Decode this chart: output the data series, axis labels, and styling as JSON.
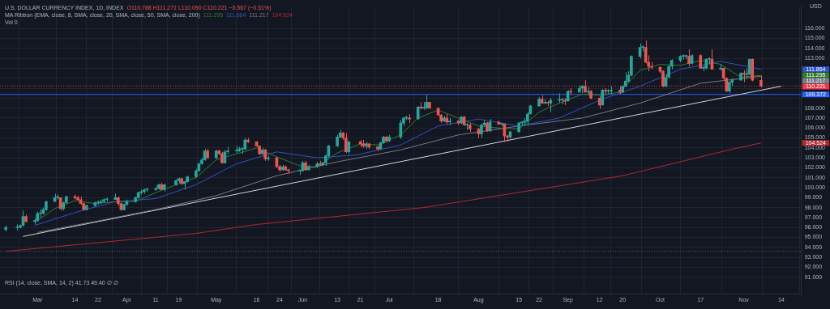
{
  "chart_data": {
    "type": "candlestick",
    "title": "U.S. DOLLAR CURRENCY INDEX, 1D, INDEX",
    "ylabel": "USD",
    "annotations": [
      "O110.788 H111.271 L110.090 C110.221 −0.567 (−0.51%)",
      "MA Ribbon (EMA, close, 8, SMA, close, 20, SMA, close, 50, SMA, close, 200)",
      "Vol 0",
      "RSI (14, close, SMA, 14, 2) 41.73 49.40 ∅ ∅",
      "111.295",
      "111.864",
      "111.217",
      "104.524"
    ],
    "x": [
      "--02-18",
      "--02-22",
      "--02-23",
      "--02-24",
      "--02-25",
      "--02-28",
      "--03-01",
      "--03-02",
      "--03-03",
      "--03-04",
      "--03-07",
      "--03-08",
      "--03-09",
      "--03-10",
      "--03-11",
      "--03-14",
      "--03-15",
      "--03-16",
      "--03-17",
      "--03-18",
      "--03-21",
      "--03-22",
      "--03-23",
      "--03-24",
      "--03-25",
      "--03-28",
      "--03-29",
      "--03-30",
      "--03-31",
      "--04-01",
      "--04-04",
      "--04-05",
      "--04-06",
      "--04-07",
      "--04-08",
      "--04-11",
      "--04-12",
      "--04-13",
      "--04-14",
      "--04-18",
      "--04-19",
      "--04-20",
      "--04-21",
      "--04-22",
      "--04-25",
      "--04-26",
      "--04-27",
      "--04-28",
      "--04-29",
      "--05-02",
      "--05-03",
      "--05-04",
      "--05-05",
      "--05-06",
      "--05-09",
      "--05-10",
      "--05-11",
      "--05-12",
      "--05-13",
      "--05-16",
      "--05-17",
      "--05-18",
      "--05-19",
      "--05-20",
      "--05-23",
      "--05-24",
      "--05-25",
      "--05-26",
      "--05-27",
      "--05-31",
      "--06-01",
      "--06-02",
      "--06-03",
      "--06-06",
      "--06-07",
      "--06-08",
      "--06-09",
      "--06-10",
      "--06-13",
      "--06-14",
      "--06-15",
      "--06-16",
      "--06-17",
      "--06-21",
      "--06-22",
      "--06-23",
      "--06-24",
      "--06-27",
      "--06-28",
      "--06-29",
      "--06-30",
      "--07-01",
      "--07-05",
      "--07-06",
      "--07-07",
      "--07-08",
      "--07-11",
      "--07-12",
      "--07-13",
      "--07-14",
      "--07-15",
      "--07-18",
      "--07-19",
      "--07-20",
      "--07-21",
      "--07-22",
      "--07-25",
      "--07-26",
      "--07-27",
      "--07-28",
      "--07-29",
      "--08-01",
      "--08-02",
      "--08-03",
      "--08-04",
      "--08-05",
      "--08-08",
      "--08-09",
      "--08-10",
      "--08-11",
      "--08-12",
      "--08-15",
      "--08-16",
      "--08-17",
      "--08-18",
      "--08-19",
      "--08-22",
      "--08-23",
      "--08-24",
      "--08-25",
      "--08-26",
      "--08-29",
      "--08-30",
      "--08-31",
      "--09-01",
      "--09-02",
      "--09-05",
      "--09-06",
      "--09-07",
      "--09-08",
      "--09-09",
      "--09-12",
      "--09-13",
      "--09-14",
      "--09-15",
      "--09-16",
      "--09-19",
      "--09-20",
      "--09-21",
      "--09-22",
      "--09-23",
      "--09-26",
      "--09-27",
      "--09-28",
      "--09-29",
      "--09-30",
      "--10-03",
      "--10-04",
      "--10-05",
      "--10-06",
      "--10-07",
      "--10-10",
      "--10-11",
      "--10-12",
      "--10-13",
      "--10-14",
      "--10-17",
      "--10-18",
      "--10-19",
      "--10-20",
      "--10-21",
      "--10-24",
      "--10-25",
      "--10-26",
      "--10-27",
      "--10-28",
      "--10-31",
      "--11-01",
      "--11-02",
      "--11-03",
      "--11-04",
      "--11-07"
    ],
    "ohlc": [
      [
        95.8,
        96.2,
        95.6,
        96.0
      ],
      [
        96.0,
        96.3,
        95.7,
        96.0
      ],
      [
        96.0,
        96.3,
        95.9,
        96.2
      ],
      [
        96.2,
        97.7,
        96.1,
        97.1
      ],
      [
        97.1,
        97.3,
        96.5,
        96.6
      ],
      [
        96.6,
        96.9,
        96.3,
        96.7
      ],
      [
        96.7,
        97.6,
        96.6,
        97.4
      ],
      [
        97.4,
        97.8,
        97.0,
        97.4
      ],
      [
        97.4,
        98.0,
        97.3,
        97.8
      ],
      [
        97.8,
        98.7,
        97.7,
        98.6
      ],
      [
        98.6,
        99.4,
        98.6,
        99.0
      ],
      [
        99.0,
        99.3,
        98.8,
        99.0
      ],
      [
        99.0,
        99.0,
        97.7,
        97.9
      ],
      [
        97.9,
        98.6,
        97.7,
        98.5
      ],
      [
        98.5,
        99.2,
        98.4,
        99.1
      ],
      [
        99.1,
        99.3,
        98.8,
        99.0
      ],
      [
        99.0,
        99.2,
        98.7,
        98.8
      ],
      [
        98.8,
        99.1,
        98.3,
        98.4
      ],
      [
        98.4,
        98.5,
        97.7,
        97.8
      ],
      [
        97.8,
        98.3,
        97.7,
        98.2
      ],
      [
        98.2,
        98.6,
        98.1,
        98.5
      ],
      [
        98.5,
        98.7,
        98.3,
        98.5
      ],
      [
        98.5,
        98.8,
        98.4,
        98.6
      ],
      [
        98.6,
        98.9,
        98.5,
        98.8
      ],
      [
        98.8,
        99.0,
        98.6,
        98.8
      ],
      [
        98.8,
        99.4,
        98.8,
        99.0
      ],
      [
        99.0,
        99.1,
        98.2,
        98.4
      ],
      [
        98.4,
        98.5,
        97.7,
        97.8
      ],
      [
        97.8,
        98.4,
        97.7,
        98.3
      ],
      [
        98.3,
        98.8,
        98.2,
        98.6
      ],
      [
        98.6,
        99.1,
        98.5,
        99.0
      ],
      [
        99.0,
        99.6,
        98.9,
        99.5
      ],
      [
        99.5,
        99.8,
        99.3,
        99.6
      ],
      [
        99.6,
        99.9,
        99.4,
        99.8
      ],
      [
        99.8,
        100.0,
        99.6,
        99.8
      ],
      [
        99.8,
        100.1,
        99.7,
        99.9
      ],
      [
        99.9,
        100.4,
        99.8,
        100.3
      ],
      [
        100.3,
        100.5,
        99.8,
        99.8
      ],
      [
        99.8,
        100.4,
        99.6,
        100.3
      ],
      [
        100.3,
        100.8,
        100.2,
        100.7
      ],
      [
        100.7,
        101.0,
        100.5,
        100.9
      ],
      [
        100.9,
        101.0,
        100.3,
        100.4
      ],
      [
        100.4,
        100.7,
        99.8,
        100.6
      ],
      [
        100.6,
        101.2,
        100.5,
        101.1
      ],
      [
        101.1,
        101.9,
        101.0,
        101.7
      ],
      [
        101.7,
        102.5,
        101.6,
        102.4
      ],
      [
        102.4,
        103.0,
        102.3,
        102.8
      ],
      [
        102.8,
        103.9,
        102.7,
        103.7
      ],
      [
        103.7,
        103.9,
        102.9,
        103.0
      ],
      [
        103.0,
        103.8,
        102.9,
        103.7
      ],
      [
        103.7,
        103.8,
        103.3,
        103.4
      ],
      [
        103.4,
        103.6,
        102.4,
        102.5
      ],
      [
        102.5,
        103.8,
        102.4,
        103.6
      ],
      [
        103.6,
        104.1,
        103.4,
        103.7
      ],
      [
        103.7,
        104.2,
        103.5,
        103.7
      ],
      [
        103.7,
        104.1,
        103.6,
        103.9
      ],
      [
        103.9,
        104.0,
        103.4,
        103.9
      ],
      [
        103.9,
        105.0,
        103.8,
        104.8
      ],
      [
        104.8,
        105.0,
        104.5,
        104.6
      ],
      [
        104.6,
        104.7,
        104.1,
        104.2
      ],
      [
        104.2,
        104.2,
        103.3,
        103.4
      ],
      [
        103.4,
        104.0,
        103.3,
        103.8
      ],
      [
        103.8,
        103.9,
        102.7,
        102.9
      ],
      [
        102.9,
        103.2,
        102.7,
        103.0
      ],
      [
        103.0,
        103.1,
        102.0,
        102.1
      ],
      [
        102.1,
        102.3,
        101.6,
        101.8
      ],
      [
        101.8,
        102.3,
        101.7,
        102.1
      ],
      [
        102.1,
        102.2,
        101.7,
        101.8
      ],
      [
        101.8,
        101.9,
        101.4,
        101.7
      ],
      [
        101.7,
        101.8,
        101.3,
        101.7
      ],
      [
        101.7,
        102.7,
        101.6,
        102.5
      ],
      [
        102.5,
        102.7,
        101.7,
        101.8
      ],
      [
        101.8,
        102.3,
        101.7,
        102.1
      ],
      [
        102.1,
        102.6,
        102.0,
        102.4
      ],
      [
        102.4,
        102.7,
        102.2,
        102.3
      ],
      [
        102.3,
        102.6,
        102.2,
        102.5
      ],
      [
        102.5,
        103.3,
        102.2,
        103.2
      ],
      [
        103.2,
        104.3,
        103.0,
        104.2
      ],
      [
        104.2,
        105.3,
        104.1,
        105.1
      ],
      [
        105.1,
        105.8,
        105.0,
        105.5
      ],
      [
        105.5,
        105.6,
        104.8,
        105.0
      ],
      [
        105.0,
        105.5,
        103.5,
        103.6
      ],
      [
        103.6,
        104.7,
        103.4,
        104.6
      ],
      [
        104.6,
        104.8,
        104.1,
        104.4
      ],
      [
        104.4,
        104.8,
        104.0,
        104.2
      ],
      [
        104.2,
        104.6,
        103.9,
        104.4
      ],
      [
        104.4,
        104.5,
        103.9,
        104.1
      ],
      [
        104.1,
        104.2,
        103.7,
        103.9
      ],
      [
        103.9,
        104.6,
        103.8,
        104.5
      ],
      [
        104.5,
        105.2,
        104.4,
        105.1
      ],
      [
        105.1,
        105.2,
        104.5,
        104.7
      ],
      [
        104.7,
        105.3,
        104.6,
        105.1
      ],
      [
        105.1,
        106.8,
        104.9,
        106.5
      ],
      [
        106.5,
        107.1,
        106.2,
        107.0
      ],
      [
        107.0,
        107.2,
        106.8,
        107.0
      ],
      [
        107.0,
        107.4,
        106.5,
        106.9
      ],
      [
        106.9,
        108.2,
        106.9,
        108.1
      ],
      [
        108.1,
        108.6,
        107.9,
        108.0
      ],
      [
        108.0,
        108.6,
        107.8,
        108.0
      ],
      [
        108.0,
        109.3,
        107.9,
        108.6
      ],
      [
        108.6,
        108.6,
        107.9,
        108.0
      ],
      [
        108.0,
        108.0,
        107.2,
        107.3
      ],
      [
        107.3,
        107.4,
        106.5,
        106.7
      ],
      [
        106.7,
        107.2,
        106.6,
        107.0
      ],
      [
        107.0,
        107.4,
        106.4,
        106.6
      ],
      [
        106.6,
        107.0,
        106.3,
        106.7
      ],
      [
        106.7,
        106.8,
        106.3,
        106.5
      ],
      [
        106.5,
        107.2,
        106.4,
        107.1
      ],
      [
        107.1,
        107.2,
        106.2,
        106.3
      ],
      [
        106.3,
        106.5,
        105.8,
        106.3
      ],
      [
        106.3,
        106.5,
        105.6,
        105.9
      ],
      [
        105.9,
        106.0,
        105.0,
        105.4
      ],
      [
        105.4,
        106.4,
        105.0,
        106.3
      ],
      [
        106.3,
        106.8,
        106.2,
        106.5
      ],
      [
        106.5,
        106.6,
        105.6,
        105.7
      ],
      [
        105.7,
        106.9,
        105.6,
        106.6
      ],
      [
        106.6,
        106.7,
        106.3,
        106.4
      ],
      [
        106.4,
        106.5,
        106.2,
        106.4
      ],
      [
        106.4,
        106.4,
        104.6,
        105.2
      ],
      [
        105.2,
        105.3,
        104.6,
        105.1
      ],
      [
        105.1,
        105.7,
        104.9,
        105.6
      ],
      [
        105.6,
        106.6,
        105.6,
        106.5
      ],
      [
        106.5,
        106.7,
        106.3,
        106.6
      ],
      [
        106.6,
        107.0,
        106.2,
        106.7
      ],
      [
        106.7,
        107.6,
        106.4,
        107.4
      ],
      [
        107.4,
        108.3,
        107.4,
        108.2
      ],
      [
        108.2,
        109.1,
        108.2,
        108.9
      ],
      [
        108.9,
        109.3,
        108.4,
        108.5
      ],
      [
        108.5,
        108.9,
        108.4,
        108.6
      ],
      [
        108.6,
        108.7,
        108.2,
        108.5
      ],
      [
        108.5,
        109.0,
        107.6,
        108.8
      ],
      [
        108.8,
        109.5,
        108.5,
        108.8
      ],
      [
        108.8,
        109.0,
        108.4,
        108.8
      ],
      [
        108.8,
        109.0,
        108.3,
        108.7
      ],
      [
        108.7,
        109.8,
        108.7,
        109.7
      ],
      [
        109.7,
        110.0,
        109.3,
        109.6
      ],
      [
        109.6,
        110.3,
        109.6,
        110.0
      ],
      [
        110.0,
        110.3,
        109.5,
        110.2
      ],
      [
        110.2,
        110.8,
        109.6,
        109.6
      ],
      [
        109.6,
        110.1,
        109.3,
        109.7
      ],
      [
        109.7,
        109.8,
        108.9,
        109.0
      ],
      [
        109.0,
        109.2,
        107.9,
        108.3
      ],
      [
        108.3,
        109.9,
        108.3,
        109.8
      ],
      [
        109.8,
        110.0,
        109.3,
        109.7
      ],
      [
        109.7,
        109.9,
        109.4,
        109.7
      ],
      [
        109.7,
        110.2,
        109.4,
        109.8
      ],
      [
        109.8,
        110.2,
        109.4,
        109.6
      ],
      [
        109.6,
        110.3,
        109.5,
        110.2
      ],
      [
        110.2,
        111.6,
        110.1,
        110.7
      ],
      [
        110.7,
        111.7,
        110.6,
        111.3
      ],
      [
        111.3,
        113.3,
        111.2,
        113.2
      ],
      [
        113.2,
        114.5,
        113.0,
        114.1
      ],
      [
        114.1,
        114.3,
        113.7,
        114.1
      ],
      [
        114.1,
        114.8,
        112.5,
        112.6
      ],
      [
        112.6,
        113.3,
        111.7,
        112.2
      ],
      [
        112.2,
        112.6,
        111.9,
        112.1
      ],
      [
        112.1,
        112.2,
        111.5,
        111.7
      ],
      [
        111.7,
        111.8,
        110.1,
        110.2
      ],
      [
        110.2,
        111.4,
        110.1,
        111.1
      ],
      [
        111.1,
        112.3,
        111.0,
        112.2
      ],
      [
        112.2,
        112.9,
        111.9,
        112.8
      ],
      [
        112.8,
        113.3,
        112.6,
        113.2
      ],
      [
        113.2,
        113.4,
        112.9,
        113.2
      ],
      [
        113.2,
        113.3,
        112.9,
        113.2
      ],
      [
        113.2,
        113.9,
        112.2,
        112.5
      ],
      [
        112.5,
        113.4,
        112.4,
        113.3
      ],
      [
        113.3,
        113.4,
        112.0,
        112.0
      ],
      [
        112.0,
        112.3,
        111.7,
        112.0
      ],
      [
        112.0,
        113.0,
        111.9,
        112.9
      ],
      [
        112.9,
        113.1,
        112.4,
        112.9
      ],
      [
        112.9,
        113.9,
        111.9,
        111.9
      ],
      [
        111.9,
        112.4,
        111.8,
        112.0
      ],
      [
        112.0,
        112.1,
        110.8,
        111.0
      ],
      [
        111.0,
        111.1,
        109.6,
        109.7
      ],
      [
        109.7,
        110.7,
        109.5,
        110.6
      ],
      [
        110.6,
        111.0,
        110.2,
        110.8
      ],
      [
        110.8,
        111.6,
        110.8,
        111.5
      ],
      [
        111.5,
        111.8,
        110.6,
        111.4
      ],
      [
        111.4,
        112.0,
        110.9,
        111.4
      ],
      [
        111.4,
        113.0,
        111.3,
        112.9
      ],
      [
        112.9,
        113.0,
        110.7,
        110.8
      ],
      [
        110.788,
        111.271,
        110.09,
        110.221
      ]
    ],
    "series": [
      {
        "type": "line",
        "color": "#2e7d32",
        "x": [
          "--02-28",
          "--03-07",
          "--03-14",
          "--03-21",
          "--03-28",
          "--04-04",
          "--04-11",
          "--04-19",
          "--04-25",
          "--05-02",
          "--05-09",
          "--05-16",
          "--05-23",
          "--05-31",
          "--06-06",
          "--06-13",
          "--06-21",
          "--06-27",
          "--07-05",
          "--07-11",
          "--07-18",
          "--07-25",
          "--08-01",
          "--08-08",
          "--08-15",
          "--08-22",
          "--08-29",
          "--09-06",
          "--09-12",
          "--09-19",
          "--09-26",
          "--10-03",
          "--10-10",
          "--10-17",
          "--10-24",
          "--10-31",
          "--11-07"
        ],
        "values": [
          96.5,
          97.9,
          98.7,
          98.4,
          98.6,
          98.6,
          99.5,
          100.4,
          101.0,
          102.8,
          103.4,
          104.0,
          103.1,
          102.2,
          102.1,
          103.5,
          104.4,
          104.3,
          105.3,
          107.0,
          107.8,
          107.0,
          106.2,
          106.0,
          105.9,
          107.6,
          108.5,
          109.4,
          109.3,
          109.6,
          111.8,
          112.4,
          112.3,
          112.8,
          112.4,
          111.1,
          111.3
        ]
      },
      {
        "type": "line",
        "color": "#2f52c4",
        "x": [
          "--02-28",
          "--03-14",
          "--03-28",
          "--04-11",
          "--04-25",
          "--05-09",
          "--05-23",
          "--06-06",
          "--06-20",
          "--07-05",
          "--07-18",
          "--08-01",
          "--08-15",
          "--08-29",
          "--09-12",
          "--09-26",
          "--10-10",
          "--10-24",
          "--11-07"
        ],
        "values": [
          96.2,
          97.5,
          98.6,
          98.9,
          100.3,
          102.4,
          103.6,
          103.0,
          103.3,
          104.3,
          106.2,
          106.9,
          106.2,
          107.0,
          108.8,
          110.2,
          111.9,
          112.7,
          111.9
        ]
      },
      {
        "type": "line",
        "color": "#787b86",
        "x": [
          "--03-01",
          "--03-21",
          "--04-11",
          "--05-02",
          "--05-23",
          "--06-13",
          "--07-05",
          "--07-25",
          "--08-15",
          "--09-06",
          "--09-26",
          "--10-17",
          "--11-07"
        ],
        "values": [
          95.5,
          96.6,
          97.8,
          99.2,
          101.2,
          102.6,
          103.8,
          105.3,
          106.2,
          107.0,
          108.5,
          110.5,
          111.2
        ]
      },
      {
        "type": "line",
        "color": "#b22833",
        "x": [
          "--02-18",
          "--04-25",
          "--05-16",
          "--07-13",
          "--09-20",
          "--10-27",
          "--11-07"
        ],
        "values": [
          93.6,
          95.4,
          96.3,
          98.0,
          101.2,
          103.8,
          104.5
        ]
      },
      {
        "type": "line",
        "color": "#d1d4dc",
        "x": [
          "--02-24",
          "--11-14"
        ],
        "values": [
          95.1,
          110.2
        ]
      }
    ],
    "ref_lines": [
      {
        "axis": "y",
        "value": 109.372,
        "label": "109.372",
        "color": "#2962ff",
        "line_style": "solid"
      },
      {
        "axis": "y",
        "value": 110.221,
        "label": "110.221",
        "color": "#f23645",
        "line_style": "dotted"
      },
      {
        "axis": "y",
        "value": 93.6,
        "color": "#3d6b6b",
        "line_style": "dotted"
      }
    ],
    "xlim": [
      "--02-16",
      "--11-21"
    ],
    "xticks": [
      {
        "value": "--03-01",
        "label": "Mar"
      },
      {
        "value": "--03-14",
        "label": "14"
      },
      {
        "value": "--03-22",
        "label": "22"
      },
      {
        "value": "--04-01",
        "label": "Apr"
      },
      {
        "value": "--04-11",
        "label": "11"
      },
      {
        "value": "--04-19",
        "label": "19"
      },
      {
        "value": "--05-02",
        "label": "May"
      },
      {
        "value": "--05-16",
        "label": "16"
      },
      {
        "value": "--05-24",
        "label": "24"
      },
      {
        "value": "--06-01",
        "label": "Jun"
      },
      {
        "value": "--06-13",
        "label": "13"
      },
      {
        "value": "--06-21",
        "label": "21"
      },
      {
        "value": "--07-01",
        "label": "Jul"
      },
      {
        "value": "--07-18",
        "label": "18"
      },
      {
        "value": "--08-01",
        "label": "Aug"
      },
      {
        "value": "--08-15",
        "label": "15"
      },
      {
        "value": "--08-22",
        "label": "22"
      },
      {
        "value": "--09-01",
        "label": "Sep"
      },
      {
        "value": "--09-12",
        "label": "12"
      },
      {
        "value": "--09-20",
        "label": "20"
      },
      {
        "value": "--10-03",
        "label": "Oct"
      },
      {
        "value": "--10-17",
        "label": "17"
      },
      {
        "value": "--11-01",
        "label": "Nov"
      },
      {
        "value": "--11-14",
        "label": "14"
      }
    ],
    "ylim": [
      89.3,
      118.2
    ],
    "yticks": [
      {
        "value": 91,
        "label": "91.000"
      },
      {
        "value": 92,
        "label": "92.000"
      },
      {
        "value": 93,
        "label": "93.000"
      },
      {
        "value": 94,
        "label": "94.000"
      },
      {
        "value": 95,
        "label": "95.000"
      },
      {
        "value": 96,
        "label": "96.000"
      },
      {
        "value": 97,
        "label": "97.000"
      },
      {
        "value": 98,
        "label": "98.000"
      },
      {
        "value": 99,
        "label": "99.000"
      },
      {
        "value": 100,
        "label": "100.000"
      },
      {
        "value": 101,
        "label": "101.000"
      },
      {
        "value": 102,
        "label": "102.000"
      },
      {
        "value": 103,
        "label": "103.000"
      },
      {
        "value": 104,
        "label": "104.000"
      },
      {
        "value": 105,
        "label": "105.000"
      },
      {
        "value": 106,
        "label": "106.000"
      },
      {
        "value": 107,
        "label": "107.000"
      },
      {
        "value": 108,
        "label": "108.000"
      },
      {
        "value": 109,
        "label": null
      },
      {
        "value": 110,
        "label": null
      },
      {
        "value": 111,
        "label": null
      },
      {
        "value": 112,
        "label": null
      },
      {
        "value": 113,
        "label": "113.000"
      },
      {
        "value": 114,
        "label": "114.000"
      },
      {
        "value": 115,
        "label": "115.000"
      },
      {
        "value": 116,
        "label": "116.000"
      }
    ],
    "grid": true,
    "legend": false,
    "marker": "none",
    "line_style": "solid"
  }
}
